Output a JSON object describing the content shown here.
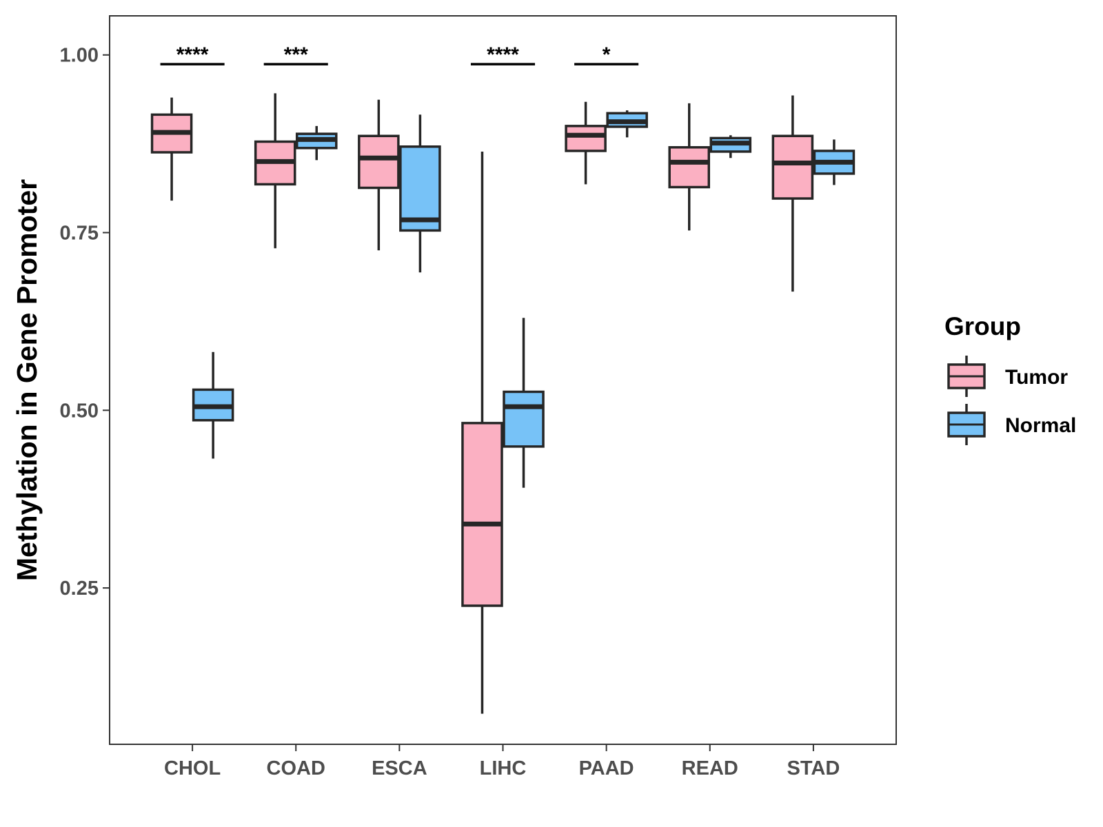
{
  "chart_data": {
    "type": "boxplot",
    "title": "",
    "xlabel": "",
    "ylabel": "Methylation in Gene Promoter",
    "ylim": [
      0.03,
      1.055
    ],
    "yticks": [
      0.25,
      0.5,
      0.75,
      1.0
    ],
    "ytick_labels": [
      "0.25",
      "0.50",
      "0.75",
      "1.00"
    ],
    "categories": [
      "CHOL",
      "COAD",
      "ESCA",
      "LIHC",
      "PAAD",
      "READ",
      "STAD"
    ],
    "legend": {
      "title": "Group",
      "position": "right",
      "entries": [
        {
          "name": "Tumor",
          "color": "#FBB0C2"
        },
        {
          "name": "Normal",
          "color": "#77C2F7"
        }
      ]
    },
    "series": [
      {
        "name": "Tumor",
        "color": "#FBB0C2",
        "boxes": [
          {
            "category": "CHOL",
            "min": 0.795,
            "q1": 0.863,
            "median": 0.891,
            "q3": 0.916,
            "max": 0.94
          },
          {
            "category": "COAD",
            "min": 0.728,
            "q1": 0.818,
            "median": 0.85,
            "q3": 0.878,
            "max": 0.946
          },
          {
            "category": "ESCA",
            "min": 0.725,
            "q1": 0.813,
            "median": 0.855,
            "q3": 0.886,
            "max": 0.937
          },
          {
            "category": "LIHC",
            "min": 0.073,
            "q1": 0.225,
            "median": 0.34,
            "q3": 0.482,
            "max": 0.864
          },
          {
            "category": "PAAD",
            "min": 0.818,
            "q1": 0.865,
            "median": 0.887,
            "q3": 0.9,
            "max": 0.934
          },
          {
            "category": "READ",
            "min": 0.753,
            "q1": 0.814,
            "median": 0.849,
            "q3": 0.87,
            "max": 0.932
          },
          {
            "category": "STAD",
            "min": 0.667,
            "q1": 0.798,
            "median": 0.848,
            "q3": 0.886,
            "max": 0.943
          }
        ]
      },
      {
        "name": "Normal",
        "color": "#77C2F7",
        "boxes": [
          {
            "category": "CHOL",
            "min": 0.432,
            "q1": 0.486,
            "median": 0.505,
            "q3": 0.529,
            "max": 0.582
          },
          {
            "category": "COAD",
            "min": 0.852,
            "q1": 0.869,
            "median": 0.881,
            "q3": 0.889,
            "max": 0.9
          },
          {
            "category": "ESCA",
            "min": 0.694,
            "q1": 0.753,
            "median": 0.768,
            "q3": 0.871,
            "max": 0.916
          },
          {
            "category": "LIHC",
            "min": 0.391,
            "q1": 0.449,
            "median": 0.505,
            "q3": 0.526,
            "max": 0.63
          },
          {
            "category": "PAAD",
            "min": 0.884,
            "q1": 0.899,
            "median": 0.906,
            "q3": 0.918,
            "max": 0.922
          },
          {
            "category": "READ",
            "min": 0.855,
            "q1": 0.864,
            "median": 0.876,
            "q3": 0.883,
            "max": 0.887
          },
          {
            "category": "STAD",
            "min": 0.817,
            "q1": 0.833,
            "median": 0.849,
            "q3": 0.865,
            "max": 0.881
          }
        ]
      }
    ],
    "annotations": [
      {
        "category": "CHOL",
        "label": "****",
        "y": 0.987
      },
      {
        "category": "COAD",
        "label": "***",
        "y": 0.987
      },
      {
        "category": "LIHC",
        "label": "****",
        "y": 0.987
      },
      {
        "category": "PAAD",
        "label": "*",
        "y": 0.987
      }
    ]
  }
}
